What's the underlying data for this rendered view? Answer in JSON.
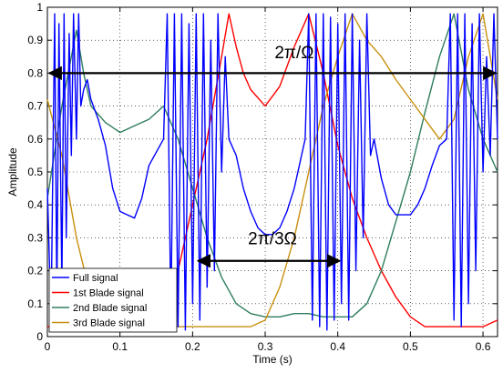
{
  "chart_data": {
    "type": "line",
    "title": "",
    "xlabel": "Time (s)",
    "ylabel": "Amplitude",
    "xlim": [
      0,
      0.62
    ],
    "ylim": [
      0,
      1
    ],
    "xticks": [
      0,
      0.1,
      0.2,
      0.3,
      0.4,
      0.5,
      0.6
    ],
    "xtick_labels": [
      "0",
      "0.1",
      "0.2",
      "0.3",
      "0.4",
      "0.5",
      "0.6"
    ],
    "yticks": [
      0,
      0.1,
      0.2,
      0.3,
      0.4,
      0.5,
      0.6,
      0.7,
      0.8,
      0.9,
      1
    ],
    "ytick_labels": [
      "0",
      "0.1",
      "0.2",
      "0.3",
      "0.4",
      "0.5",
      "0.6",
      "0.7",
      "0.8",
      "0.9",
      "1"
    ],
    "grid": true,
    "legend_position": "bottom-left",
    "series": [
      {
        "name": "Full signal",
        "color": "#0000ff",
        "x": [
          0.0,
          0.005,
          0.01,
          0.013,
          0.016,
          0.02,
          0.023,
          0.026,
          0.03,
          0.033,
          0.036,
          0.04,
          0.043,
          0.046,
          0.05,
          0.055,
          0.06,
          0.07,
          0.08,
          0.09,
          0.1,
          0.11,
          0.12,
          0.13,
          0.14,
          0.15,
          0.16,
          0.165,
          0.17,
          0.175,
          0.18,
          0.185,
          0.19,
          0.195,
          0.2,
          0.205,
          0.21,
          0.215,
          0.22,
          0.225,
          0.23,
          0.235,
          0.24,
          0.245,
          0.25,
          0.26,
          0.27,
          0.28,
          0.29,
          0.3,
          0.31,
          0.32,
          0.33,
          0.34,
          0.35,
          0.355,
          0.36,
          0.365,
          0.37,
          0.375,
          0.38,
          0.385,
          0.39,
          0.395,
          0.4,
          0.405,
          0.41,
          0.415,
          0.42,
          0.425,
          0.43,
          0.435,
          0.44,
          0.445,
          0.45,
          0.46,
          0.47,
          0.48,
          0.49,
          0.5,
          0.51,
          0.52,
          0.53,
          0.54,
          0.55,
          0.555,
          0.56,
          0.565,
          0.57,
          0.575,
          0.58,
          0.585,
          0.59,
          0.595,
          0.6,
          0.605,
          0.61,
          0.615,
          0.62
        ],
        "values": [
          0.45,
          0.05,
          0.98,
          0.1,
          0.95,
          0.15,
          0.98,
          0.3,
          0.92,
          0.55,
          0.98,
          0.6,
          0.98,
          0.7,
          0.75,
          0.78,
          0.72,
          0.66,
          0.58,
          0.45,
          0.38,
          0.37,
          0.36,
          0.42,
          0.52,
          0.56,
          0.6,
          0.98,
          0.05,
          0.98,
          0.03,
          0.98,
          0.02,
          0.95,
          0.1,
          0.98,
          0.05,
          0.98,
          0.15,
          0.9,
          0.2,
          0.98,
          0.5,
          0.85,
          0.6,
          0.55,
          0.45,
          0.38,
          0.33,
          0.31,
          0.31,
          0.33,
          0.38,
          0.45,
          0.55,
          0.6,
          0.98,
          0.05,
          0.98,
          0.03,
          0.98,
          0.02,
          0.97,
          0.05,
          0.95,
          0.1,
          0.98,
          0.05,
          0.98,
          0.2,
          0.9,
          0.3,
          0.98,
          0.55,
          0.6,
          0.48,
          0.4,
          0.37,
          0.37,
          0.37,
          0.4,
          0.45,
          0.52,
          0.58,
          0.6,
          0.98,
          0.05,
          0.98,
          0.03,
          0.98,
          0.1,
          0.95,
          0.2,
          0.98,
          0.5,
          0.85,
          0.55,
          0.98,
          0.6
        ]
      },
      {
        "name": "1st Blade signal",
        "color": "#ff0000",
        "x": [
          0.0,
          0.02,
          0.04,
          0.06,
          0.08,
          0.1,
          0.12,
          0.14,
          0.16,
          0.18,
          0.2,
          0.22,
          0.24,
          0.25,
          0.26,
          0.27,
          0.28,
          0.3,
          0.32,
          0.34,
          0.36,
          0.38,
          0.4,
          0.42,
          0.44,
          0.46,
          0.48,
          0.5,
          0.52,
          0.54,
          0.56,
          0.58,
          0.6,
          0.62
        ],
        "values": [
          0.03,
          0.03,
          0.03,
          0.03,
          0.03,
          0.03,
          0.03,
          0.03,
          0.05,
          0.2,
          0.4,
          0.6,
          0.85,
          0.98,
          0.88,
          0.8,
          0.75,
          0.7,
          0.76,
          0.88,
          0.98,
          0.8,
          0.58,
          0.42,
          0.3,
          0.2,
          0.12,
          0.06,
          0.03,
          0.03,
          0.03,
          0.03,
          0.03,
          0.05
        ]
      },
      {
        "name": "2nd Blade signal",
        "color": "#2e7d5b",
        "x": [
          0.0,
          0.02,
          0.04,
          0.05,
          0.06,
          0.08,
          0.1,
          0.12,
          0.14,
          0.16,
          0.18,
          0.2,
          0.22,
          0.24,
          0.26,
          0.28,
          0.3,
          0.32,
          0.34,
          0.36,
          0.38,
          0.4,
          0.42,
          0.44,
          0.46,
          0.48,
          0.5,
          0.52,
          0.54,
          0.56,
          0.58,
          0.6,
          0.62
        ],
        "values": [
          0.42,
          0.7,
          0.93,
          0.8,
          0.7,
          0.65,
          0.62,
          0.64,
          0.66,
          0.7,
          0.6,
          0.45,
          0.3,
          0.18,
          0.1,
          0.07,
          0.06,
          0.06,
          0.07,
          0.07,
          0.06,
          0.06,
          0.06,
          0.1,
          0.2,
          0.35,
          0.5,
          0.68,
          0.85,
          0.98,
          0.75,
          0.6,
          0.5
        ]
      },
      {
        "name": "3rd Blade signal",
        "color": "#c8900e",
        "x": [
          0.0,
          0.02,
          0.04,
          0.06,
          0.08,
          0.1,
          0.12,
          0.14,
          0.16,
          0.18,
          0.2,
          0.22,
          0.24,
          0.26,
          0.28,
          0.3,
          0.32,
          0.34,
          0.36,
          0.38,
          0.4,
          0.42,
          0.44,
          0.46,
          0.48,
          0.5,
          0.52,
          0.54,
          0.56,
          0.58,
          0.6,
          0.62
        ],
        "values": [
          0.72,
          0.55,
          0.3,
          0.12,
          0.05,
          0.03,
          0.03,
          0.03,
          0.03,
          0.03,
          0.03,
          0.03,
          0.03,
          0.03,
          0.03,
          0.05,
          0.15,
          0.3,
          0.5,
          0.7,
          0.85,
          0.98,
          0.9,
          0.85,
          0.78,
          0.72,
          0.66,
          0.6,
          0.66,
          0.85,
          0.98,
          0.72
        ]
      }
    ],
    "annotations": [
      {
        "text": "2π/Ω",
        "arrow_x": [
          0,
          0.62
        ],
        "arrow_y": 0.8,
        "label_x": 0.34,
        "label_y": 0.845
      },
      {
        "text": "2π/3Ω",
        "arrow_x": [
          0.205,
          0.405
        ],
        "arrow_y": 0.23,
        "label_x": 0.31,
        "label_y": 0.28
      }
    ]
  }
}
